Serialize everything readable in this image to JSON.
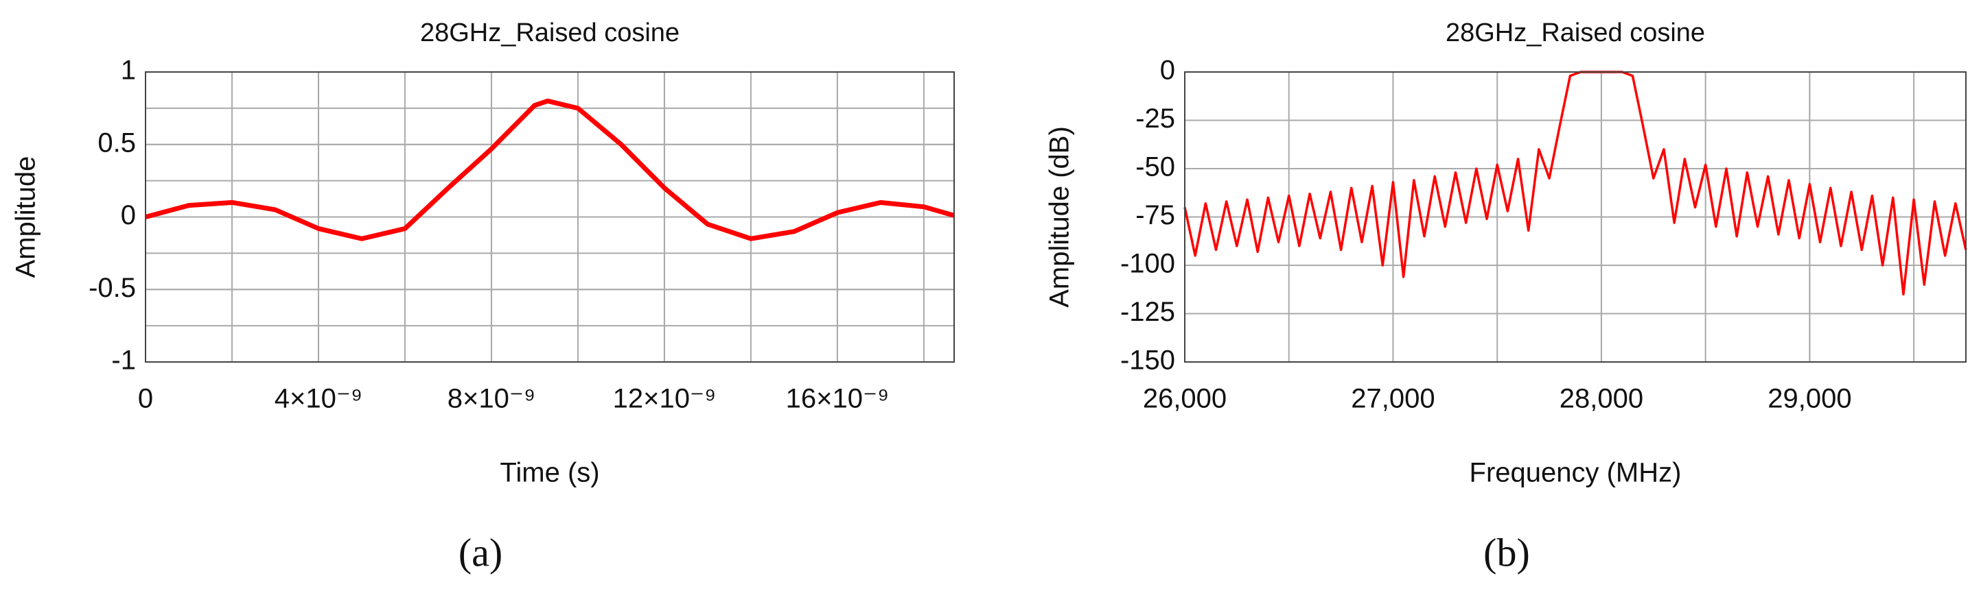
{
  "chart_data": [
    {
      "type": "line",
      "title": "28GHz_Raised cosine",
      "xlabel": "Time (s)",
      "ylabel": "Amplitude",
      "label": "(a)",
      "color": "#ff0000",
      "minor_grid": "xy",
      "xlim": [
        0,
        1.87e-08
      ],
      "ylim": [
        -1,
        1
      ],
      "xticks": [
        0,
        {
          "value": 4e-09,
          "label": "4×10⁻⁹"
        },
        {
          "value": 8e-09,
          "label": "8×10⁻⁹"
        },
        {
          "value": 1.2e-08,
          "label": "12×10⁻⁹"
        },
        {
          "value": 1.6e-08,
          "label": "16×10⁻⁹"
        }
      ],
      "yticks": [
        -1,
        -0.5,
        0,
        0.5,
        1
      ],
      "x": [
        0,
        1e-09,
        2e-09,
        3e-09,
        4e-09,
        5e-09,
        6e-09,
        7e-09,
        8e-09,
        9e-09,
        9.3e-09,
        1e-08,
        1.1e-08,
        1.2e-08,
        1.3e-08,
        1.4e-08,
        1.5e-08,
        1.6e-08,
        1.7e-08,
        1.8e-08,
        1.87e-08
      ],
      "values": [
        0,
        0.08,
        0.1,
        0.05,
        -0.08,
        -0.15,
        -0.08,
        0.2,
        0.47,
        0.77,
        0.8,
        0.75,
        0.5,
        0.2,
        -0.05,
        -0.15,
        -0.1,
        0.03,
        0.1,
        0.07,
        0.01
      ]
    },
    {
      "type": "line",
      "title": "28GHz_Raised cosine",
      "xlabel": "Frequency (MHz)",
      "ylabel": "Amplitude (dB)",
      "label": "(b)",
      "color": "#ff0000",
      "minor_grid": "x",
      "xlim": [
        26000,
        29750
      ],
      "ylim": [
        -150,
        0
      ],
      "xticks": [
        {
          "value": 26000,
          "label": "26,000"
        },
        {
          "value": 27000,
          "label": "27,000"
        },
        {
          "value": 28000,
          "label": "28,000"
        },
        {
          "value": 29000,
          "label": "29,000"
        }
      ],
      "yticks": [
        -150,
        -125,
        -100,
        -75,
        -50,
        -25,
        0
      ],
      "x": [
        26000,
        26050,
        26100,
        26150,
        26200,
        26250,
        26300,
        26350,
        26400,
        26450,
        26500,
        26550,
        26600,
        26650,
        26700,
        26750,
        26800,
        26850,
        26900,
        26950,
        27000,
        27050,
        27100,
        27150,
        27200,
        27250,
        27300,
        27350,
        27400,
        27450,
        27500,
        27550,
        27600,
        27650,
        27700,
        27750,
        27800,
        27850,
        27900,
        27950,
        28000,
        28050,
        28100,
        28150,
        28200,
        28250,
        28300,
        28350,
        28400,
        28450,
        28500,
        28550,
        28600,
        28650,
        28700,
        28750,
        28800,
        28850,
        28900,
        28950,
        29000,
        29050,
        29100,
        29150,
        29200,
        29250,
        29300,
        29350,
        29400,
        29450,
        29500,
        29550,
        29600,
        29650,
        29700,
        29750
      ],
      "values": [
        -70,
        -95,
        -68,
        -92,
        -67,
        -90,
        -66,
        -93,
        -65,
        -88,
        -64,
        -90,
        -63,
        -86,
        -62,
        -92,
        -60,
        -88,
        -59,
        -100,
        -57,
        -106,
        -56,
        -85,
        -54,
        -80,
        -52,
        -78,
        -50,
        -76,
        -48,
        -72,
        -45,
        -82,
        -40,
        -55,
        -28,
        -2,
        0,
        0,
        0,
        0,
        0,
        -2,
        -28,
        -55,
        -40,
        -78,
        -45,
        -70,
        -48,
        -80,
        -50,
        -85,
        -52,
        -80,
        -54,
        -84,
        -56,
        -86,
        -58,
        -88,
        -60,
        -90,
        -62,
        -92,
        -64,
        -100,
        -65,
        -115,
        -66,
        -110,
        -67,
        -95,
        -68,
        -92
      ]
    }
  ]
}
